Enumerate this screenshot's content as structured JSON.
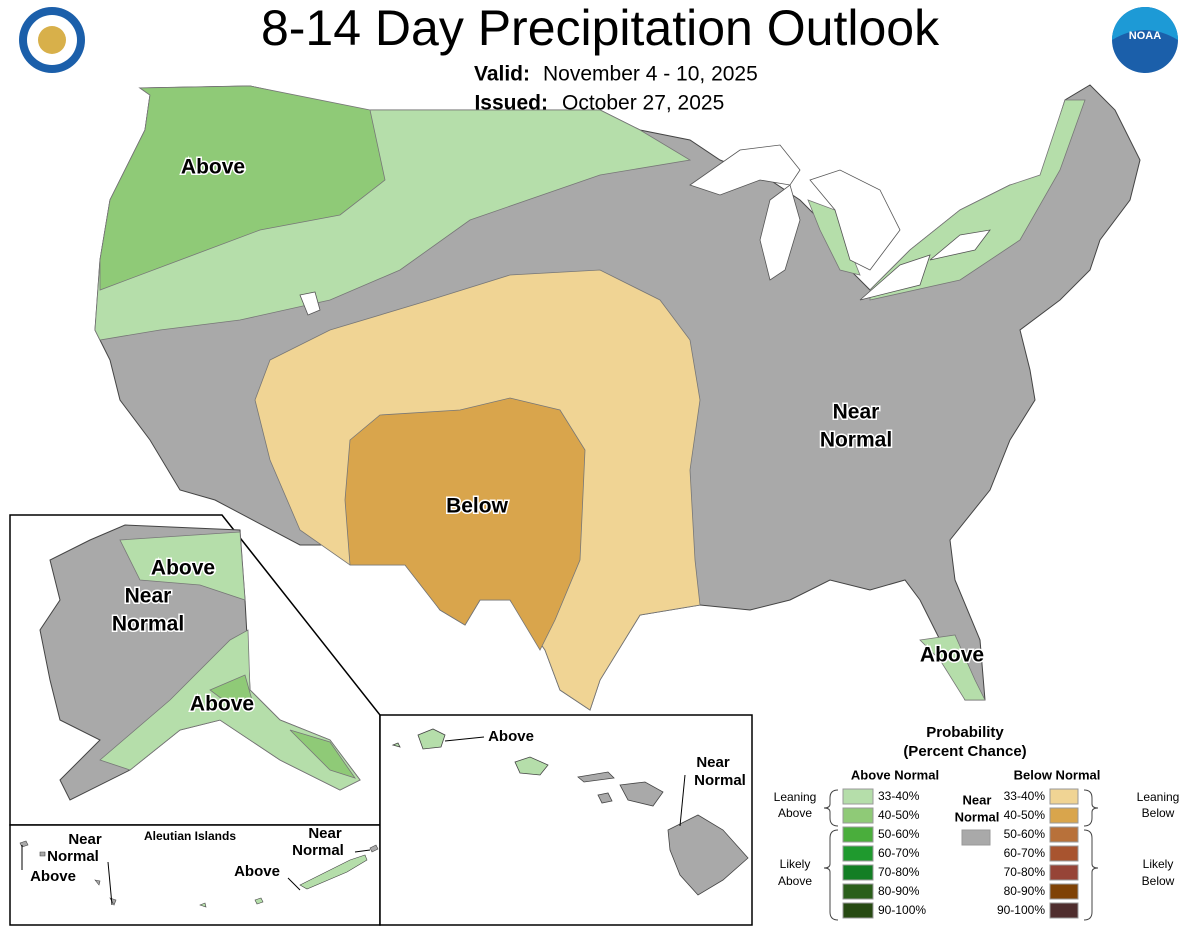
{
  "header": {
    "title": "8-14 Day Precipitation Outlook",
    "valid_label": "Valid:",
    "valid": "November 4 - 10, 2025",
    "issued_label": "Issued:",
    "issued": "October 27, 2025",
    "logo": "NOAA"
  },
  "map_labels": {
    "conus": [
      {
        "lines": [
          "Above"
        ]
      },
      {
        "lines": [
          "Near",
          "Normal"
        ]
      },
      {
        "lines": [
          "Below"
        ]
      },
      {
        "lines": [
          "Above"
        ]
      }
    ],
    "alaska": [
      {
        "lines": [
          "Above"
        ]
      },
      {
        "lines": [
          "Near",
          "Normal"
        ]
      },
      {
        "lines": [
          "Above"
        ]
      }
    ],
    "aleutians": {
      "title": "Aleutian Islands",
      "labels": [
        {
          "lines": [
            "Near",
            "Normal"
          ]
        },
        {
          "lines": [
            "Above"
          ]
        },
        {
          "lines": [
            "Near",
            "Normal"
          ]
        },
        {
          "lines": [
            "Above"
          ]
        }
      ]
    },
    "hawaii": [
      {
        "lines": [
          "Above"
        ]
      },
      {
        "lines": [
          "Near",
          "Normal"
        ]
      }
    ]
  },
  "legend": {
    "title": [
      "Probability",
      "(Percent Chance)"
    ],
    "near": {
      "lines": [
        "Near",
        "Normal"
      ],
      "color": "#a9a9a9"
    },
    "above": {
      "heading": "Above Normal",
      "groups": [
        {
          "lines": [
            "Leaning",
            "Above"
          ]
        },
        {
          "lines": [
            "Likely",
            "Above"
          ]
        }
      ],
      "bins": [
        {
          "label": "33-40%",
          "color": "#b5deaa"
        },
        {
          "label": "40-50%",
          "color": "#8fca77"
        },
        {
          "label": "50-60%",
          "color": "#4aae3c"
        },
        {
          "label": "60-70%",
          "color": "#1f9a2e"
        },
        {
          "label": "70-80%",
          "color": "#137e24"
        },
        {
          "label": "80-90%",
          "color": "#2b5f1b"
        },
        {
          "label": "90-100%",
          "color": "#274a12"
        }
      ]
    },
    "below": {
      "heading": "Below Normal",
      "groups": [
        {
          "lines": [
            "Leaning",
            "Below"
          ]
        },
        {
          "lines": [
            "Likely",
            "Below"
          ]
        }
      ],
      "bins": [
        {
          "label": "33-40%",
          "color": "#f0d494"
        },
        {
          "label": "40-50%",
          "color": "#d9a54c"
        },
        {
          "label": "50-60%",
          "color": "#b8713a"
        },
        {
          "label": "60-70%",
          "color": "#a8542f"
        },
        {
          "label": "70-80%",
          "color": "#964437"
        },
        {
          "label": "80-90%",
          "color": "#7f4205"
        },
        {
          "label": "90-100%",
          "color": "#4f2d2d"
        }
      ]
    }
  }
}
